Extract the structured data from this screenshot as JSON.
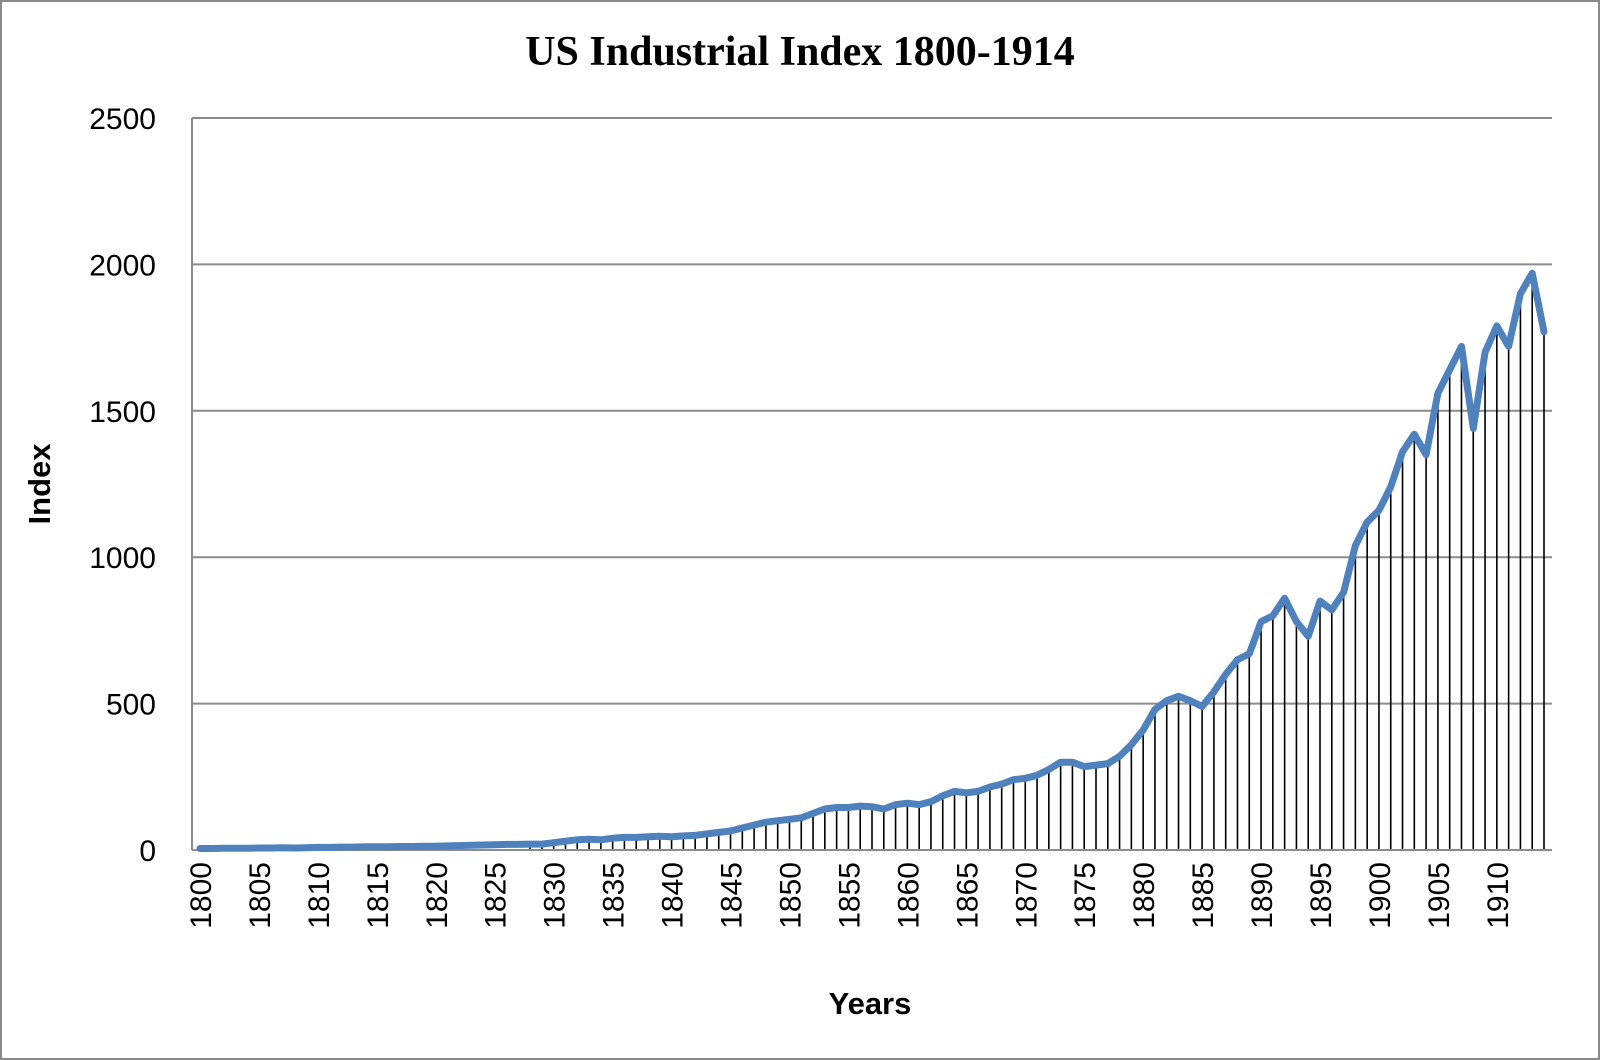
{
  "chart_data": {
    "type": "line",
    "title": "US Industrial Index 1800-1914",
    "xlabel": "Years",
    "ylabel": "Index",
    "ylim": [
      0,
      2500
    ],
    "yticks": [
      0,
      500,
      1000,
      1500,
      2000,
      2500
    ],
    "xlim": [
      1800,
      1914
    ],
    "xtick_labels": [
      "1800",
      "1805",
      "1810",
      "1815",
      "1820",
      "1825",
      "1830",
      "1835",
      "1840",
      "1845",
      "1850",
      "1855",
      "1860",
      "1865",
      "1870",
      "1875",
      "1880",
      "1885",
      "1890",
      "1895",
      "1900",
      "1905",
      "1910"
    ],
    "grid": true,
    "series_color": "#4f81bd",
    "drop_line_color": "#000000",
    "x": [
      1800,
      1801,
      1802,
      1803,
      1804,
      1805,
      1806,
      1807,
      1808,
      1809,
      1810,
      1811,
      1812,
      1813,
      1814,
      1815,
      1816,
      1817,
      1818,
      1819,
      1820,
      1821,
      1822,
      1823,
      1824,
      1825,
      1826,
      1827,
      1828,
      1829,
      1830,
      1831,
      1832,
      1833,
      1834,
      1835,
      1836,
      1837,
      1838,
      1839,
      1840,
      1841,
      1842,
      1843,
      1844,
      1845,
      1846,
      1847,
      1848,
      1849,
      1850,
      1851,
      1852,
      1853,
      1854,
      1855,
      1856,
      1857,
      1858,
      1859,
      1860,
      1861,
      1862,
      1863,
      1864,
      1865,
      1866,
      1867,
      1868,
      1869,
      1870,
      1871,
      1872,
      1873,
      1874,
      1875,
      1876,
      1877,
      1878,
      1879,
      1880,
      1881,
      1882,
      1883,
      1884,
      1885,
      1886,
      1887,
      1888,
      1889,
      1890,
      1891,
      1892,
      1893,
      1894,
      1895,
      1896,
      1897,
      1898,
      1899,
      1900,
      1901,
      1902,
      1903,
      1904,
      1905,
      1906,
      1907,
      1908,
      1909,
      1910,
      1911,
      1912,
      1913,
      1914
    ],
    "values": [
      5,
      5,
      6,
      6,
      6,
      7,
      7,
      8,
      7,
      8,
      9,
      9,
      10,
      10,
      11,
      11,
      11,
      12,
      12,
      13,
      13,
      14,
      15,
      16,
      17,
      18,
      19,
      19,
      20,
      20,
      25,
      30,
      35,
      37,
      35,
      40,
      43,
      43,
      45,
      47,
      45,
      48,
      50,
      55,
      60,
      65,
      75,
      85,
      95,
      100,
      105,
      110,
      125,
      140,
      145,
      145,
      150,
      148,
      140,
      155,
      160,
      155,
      165,
      185,
      200,
      195,
      200,
      215,
      225,
      240,
      245,
      255,
      275,
      300,
      300,
      285,
      290,
      295,
      320,
      360,
      410,
      480,
      510,
      525,
      510,
      490,
      540,
      600,
      650,
      670,
      780,
      800,
      860,
      780,
      730,
      850,
      820,
      880,
      1040,
      1120,
      1160,
      1240,
      1360,
      1420,
      1350,
      1560,
      1640,
      1720,
      1440,
      1700,
      1790,
      1720,
      1900,
      1970,
      1770
    ]
  }
}
